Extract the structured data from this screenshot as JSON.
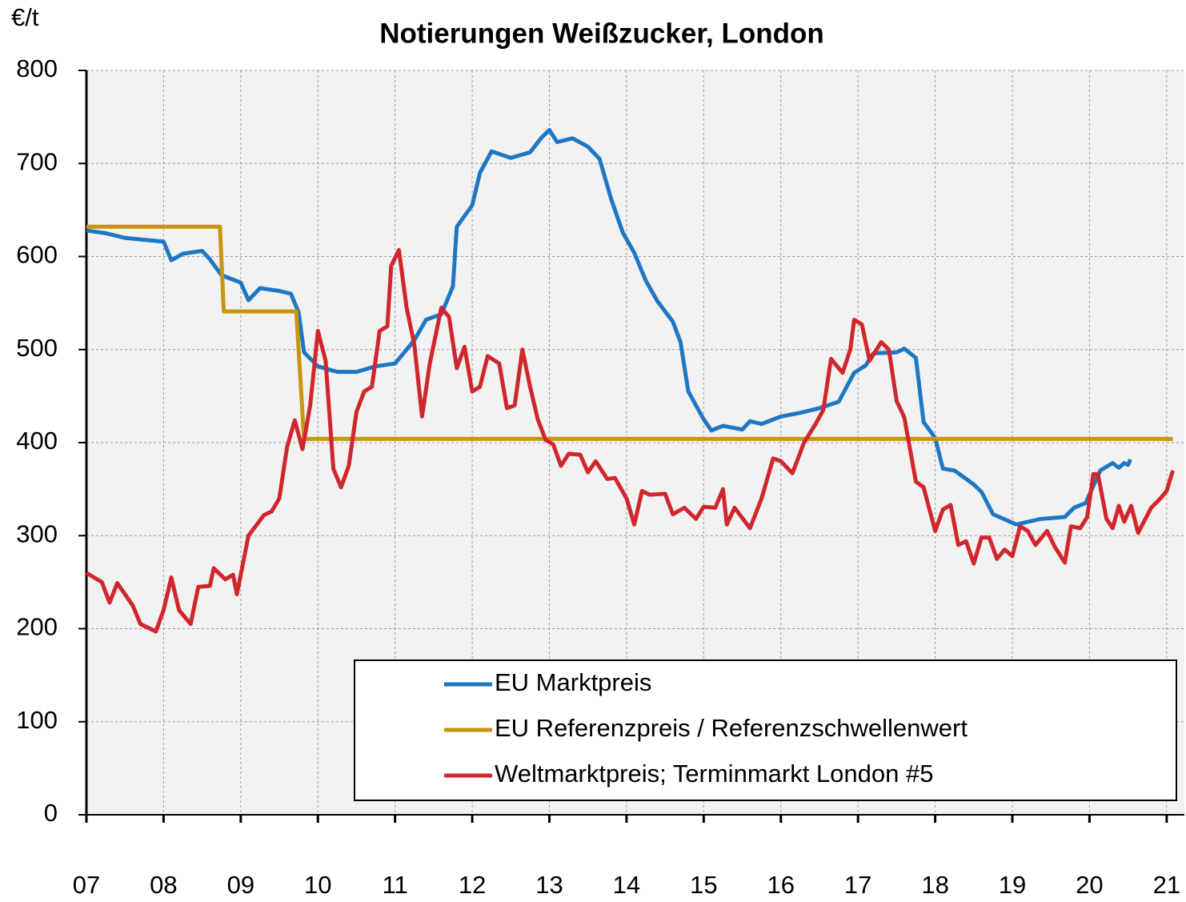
{
  "chart_data": {
    "type": "line",
    "title": "Notierungen  Weißzucker,  London",
    "y_label": "€/t",
    "xlim": [
      2007,
      2021.23
    ],
    "ylim": [
      0,
      800
    ],
    "yticks": [
      0,
      100,
      200,
      300,
      400,
      500,
      600,
      700,
      800
    ],
    "xticks": [
      {
        "value": 2007,
        "label": "07"
      },
      {
        "value": 2008,
        "label": "08"
      },
      {
        "value": 2009,
        "label": "09"
      },
      {
        "value": 2010,
        "label": "10"
      },
      {
        "value": 2011,
        "label": "11"
      },
      {
        "value": 2012,
        "label": "12"
      },
      {
        "value": 2013,
        "label": "13"
      },
      {
        "value": 2014,
        "label": "14"
      },
      {
        "value": 2015,
        "label": "15"
      },
      {
        "value": 2016,
        "label": "16"
      },
      {
        "value": 2017,
        "label": "17"
      },
      {
        "value": 2018,
        "label": "18"
      },
      {
        "value": 2019,
        "label": "19"
      },
      {
        "value": 2020,
        "label": "20"
      },
      {
        "value": 2021,
        "label": "21"
      }
    ],
    "grid": true,
    "legend": "lower right",
    "series": [
      {
        "name": "EU Marktpreis",
        "color": "#1f77c4",
        "x": [
          2007.0,
          2007.25,
          2007.5,
          2007.75,
          2008.0,
          2008.1,
          2008.25,
          2008.5,
          2008.6,
          2008.75,
          2009.0,
          2009.1,
          2009.25,
          2009.5,
          2009.65,
          2009.75,
          2009.82,
          2010.0,
          2010.25,
          2010.5,
          2010.75,
          2011.0,
          2011.25,
          2011.4,
          2011.6,
          2011.75,
          2011.8,
          2012.0,
          2012.1,
          2012.25,
          2012.5,
          2012.75,
          2012.9,
          2013.0,
          2013.1,
          2013.3,
          2013.5,
          2013.65,
          2013.8,
          2013.95,
          2014.1,
          2014.25,
          2014.4,
          2014.6,
          2014.7,
          2014.8,
          2015.0,
          2015.1,
          2015.25,
          2015.5,
          2015.6,
          2015.75,
          2016.0,
          2016.25,
          2016.5,
          2016.75,
          2016.95,
          2017.1,
          2017.2,
          2017.5,
          2017.6,
          2017.75,
          2017.85,
          2018.0,
          2018.1,
          2018.25,
          2018.5,
          2018.6,
          2018.75,
          2019.05,
          2019.37,
          2019.68,
          2019.8,
          2019.95,
          2020.14,
          2020.3,
          2020.38,
          2020.45,
          2020.5,
          2020.53
        ],
        "values": [
          628,
          625,
          620,
          618,
          616,
          596,
          603,
          606,
          597,
          580,
          572,
          553,
          566,
          563,
          560,
          540,
          497,
          482,
          476,
          476,
          482,
          485,
          510,
          532,
          538,
          568,
          632,
          655,
          690,
          713,
          706,
          712,
          728,
          736,
          723,
          727,
          718,
          705,
          662,
          626,
          604,
          574,
          552,
          530,
          508,
          455,
          425,
          413,
          418,
          414,
          423,
          420,
          428,
          432,
          437,
          444,
          475,
          483,
          496,
          497,
          501,
          491,
          422,
          405,
          372,
          370,
          355,
          347,
          323,
          312,
          318,
          320,
          330,
          335,
          370,
          378,
          373,
          378,
          376,
          382
        ]
      },
      {
        "name": "EU Referenzpreis / Referenzschwellenwert",
        "color": "#c8960c",
        "x": [
          2007.0,
          2008.73,
          2008.78,
          2009.72,
          2009.82,
          2021.08
        ],
        "values": [
          632,
          632,
          541,
          541,
          404,
          404
        ]
      },
      {
        "name": "Weltmarktpreis; Terminmarkt London #5",
        "color": "#d0262c",
        "x": [
          2007.0,
          2007.2,
          2007.3,
          2007.4,
          2007.6,
          2007.7,
          2007.9,
          2008.0,
          2008.1,
          2008.2,
          2008.35,
          2008.45,
          2008.6,
          2008.65,
          2008.8,
          2008.9,
          2008.95,
          2009.1,
          2009.2,
          2009.3,
          2009.4,
          2009.5,
          2009.6,
          2009.7,
          2009.8,
          2009.9,
          2010.0,
          2010.1,
          2010.2,
          2010.3,
          2010.4,
          2010.5,
          2010.6,
          2010.7,
          2010.8,
          2010.9,
          2010.95,
          2011.05,
          2011.15,
          2011.25,
          2011.35,
          2011.45,
          2011.6,
          2011.7,
          2011.8,
          2011.9,
          2012.0,
          2012.1,
          2012.2,
          2012.35,
          2012.45,
          2012.55,
          2012.65,
          2012.75,
          2012.85,
          2012.95,
          2013.05,
          2013.15,
          2013.25,
          2013.4,
          2013.5,
          2013.6,
          2013.75,
          2013.85,
          2014.0,
          2014.1,
          2014.2,
          2014.3,
          2014.5,
          2014.6,
          2014.75,
          2014.9,
          2015.0,
          2015.15,
          2015.25,
          2015.3,
          2015.4,
          2015.6,
          2015.75,
          2015.9,
          2016.0,
          2016.15,
          2016.3,
          2016.45,
          2016.55,
          2016.65,
          2016.8,
          2016.9,
          2016.95,
          2017.05,
          2017.15,
          2017.3,
          2017.4,
          2017.5,
          2017.6,
          2017.75,
          2017.85,
          2018.0,
          2018.1,
          2018.2,
          2018.3,
          2018.4,
          2018.5,
          2018.6,
          2018.7,
          2018.8,
          2018.9,
          2019.0,
          2019.1,
          2019.2,
          2019.3,
          2019.45,
          2019.55,
          2019.68,
          2019.76,
          2019.88,
          2019.97,
          2020.05,
          2020.11,
          2020.22,
          2020.3,
          2020.38,
          2020.45,
          2020.54,
          2020.63,
          2020.8,
          2020.92,
          2021.0,
          2021.08
        ],
        "values": [
          260,
          250,
          228,
          249,
          225,
          205,
          197,
          220,
          255,
          220,
          205,
          245,
          246,
          265,
          253,
          258,
          237,
          300,
          311,
          322,
          326,
          340,
          395,
          424,
          393,
          440,
          520,
          488,
          372,
          352,
          375,
          433,
          455,
          460,
          520,
          525,
          590,
          607,
          545,
          505,
          428,
          485,
          545,
          535,
          480,
          503,
          455,
          460,
          493,
          485,
          437,
          440,
          500,
          460,
          425,
          403,
          398,
          375,
          388,
          387,
          368,
          380,
          361,
          362,
          340,
          312,
          348,
          344,
          345,
          323,
          330,
          318,
          331,
          330,
          350,
          312,
          330,
          308,
          340,
          383,
          380,
          367,
          400,
          420,
          435,
          490,
          475,
          500,
          532,
          527,
          488,
          508,
          500,
          445,
          427,
          358,
          352,
          305,
          328,
          333,
          290,
          294,
          270,
          298,
          298,
          275,
          285,
          278,
          310,
          305,
          290,
          305,
          288,
          271,
          310,
          308,
          320,
          366,
          366,
          318,
          308,
          332,
          315,
          332,
          303,
          330,
          340,
          348,
          370
        ]
      }
    ]
  }
}
